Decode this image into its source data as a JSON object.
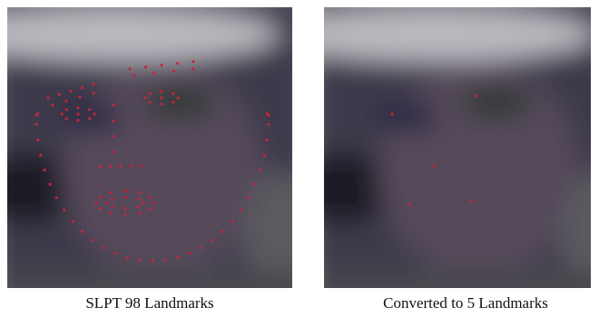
{
  "panels": [
    {
      "caption": "SLPT 98 Landmarks"
    },
    {
      "caption": "Converted to 5 Landmarks"
    }
  ]
}
